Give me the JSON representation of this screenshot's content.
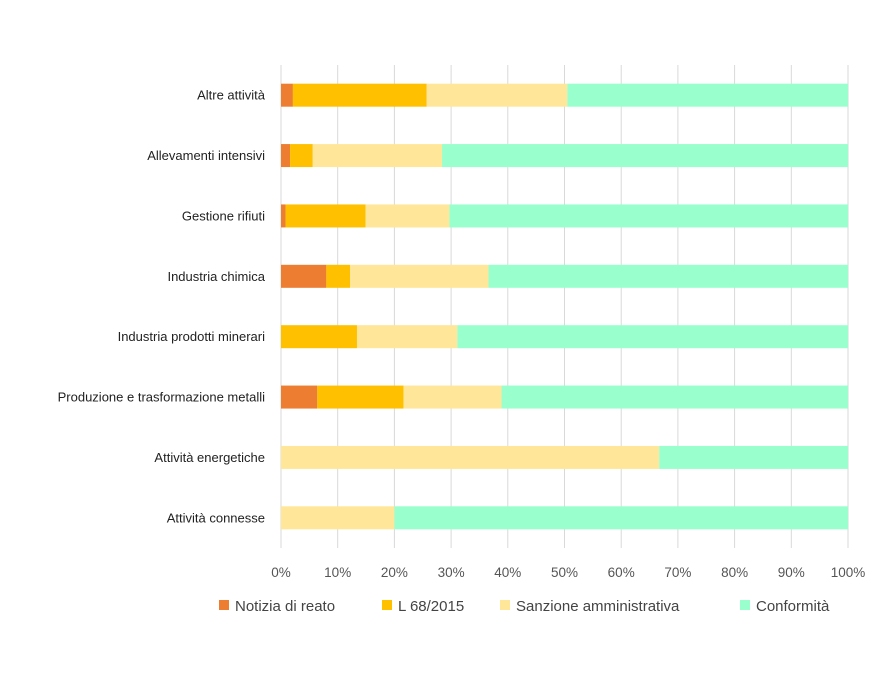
{
  "chart_data": {
    "type": "bar",
    "orientation": "horizontal",
    "stacked": "percent",
    "categories": [
      "Altre attività",
      "Allevamenti intensivi",
      "Gestione rifiuti",
      "Industria chimica",
      "Industria prodotti minerari",
      "Produzione e trasformazione metalli",
      "Attività energetiche",
      "Attività connesse"
    ],
    "series": [
      {
        "name": "Notizia di reato",
        "color": "#ED7D31",
        "values": [
          2.1,
          1.6,
          0.8,
          8.0,
          0,
          6.4,
          0,
          0
        ]
      },
      {
        "name": "L 68/2015",
        "color": "#FFC000",
        "values": [
          23.6,
          4.0,
          14.1,
          4.2,
          13.4,
          15.2,
          0,
          0
        ]
      },
      {
        "name": "Sanzione amministrativa",
        "color": "#FFE699",
        "values": [
          24.8,
          22.8,
          14.8,
          24.4,
          17.7,
          17.3,
          66.7,
          20.0
        ]
      },
      {
        "name": "Conformità",
        "color": "#99FFCC",
        "values": [
          49.5,
          71.6,
          70.3,
          63.4,
          68.9,
          61.1,
          33.3,
          80.0
        ]
      }
    ],
    "xlim": [
      0,
      100
    ],
    "xticks": [
      "0%",
      "10%",
      "20%",
      "30%",
      "40%",
      "50%",
      "60%",
      "70%",
      "80%",
      "90%",
      "100%"
    ],
    "grid": true,
    "legend_position": "bottom"
  }
}
